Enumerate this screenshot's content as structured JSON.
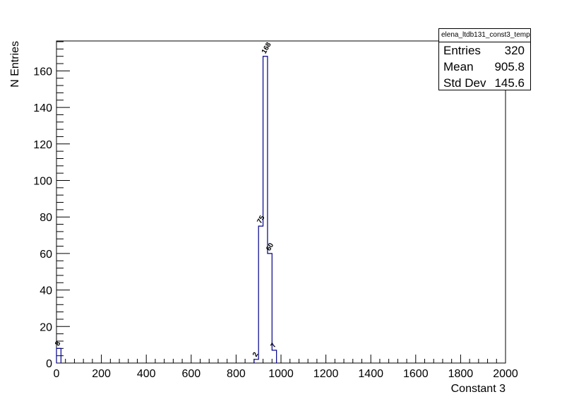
{
  "chart_data": {
    "type": "bar",
    "subtype": "step-histogram",
    "xlabel": "Constant 3",
    "ylabel": "N Entries",
    "xlim": [
      0,
      2000
    ],
    "ylim": [
      0,
      176.4
    ],
    "xticks": [
      0,
      200,
      400,
      600,
      800,
      1000,
      1200,
      1400,
      1600,
      1800,
      2000
    ],
    "yticks": [
      0,
      20,
      40,
      60,
      80,
      100,
      120,
      140,
      160
    ],
    "bin_width": 20,
    "bins": [
      {
        "x": 0,
        "value": 8
      },
      {
        "x": 880,
        "value": 2
      },
      {
        "x": 900,
        "value": 75
      },
      {
        "x": 920,
        "value": 168
      },
      {
        "x": 940,
        "value": 60
      },
      {
        "x": 960,
        "value": 7
      }
    ],
    "line_color": "#00008b",
    "grid": false
  },
  "stats": {
    "title": "elena_ltdb131_const3_temp",
    "rows": [
      {
        "label": "Entries",
        "value": "320"
      },
      {
        "label": "Mean",
        "value": "905.8"
      },
      {
        "label": "Std Dev",
        "value": "145.6"
      }
    ]
  }
}
